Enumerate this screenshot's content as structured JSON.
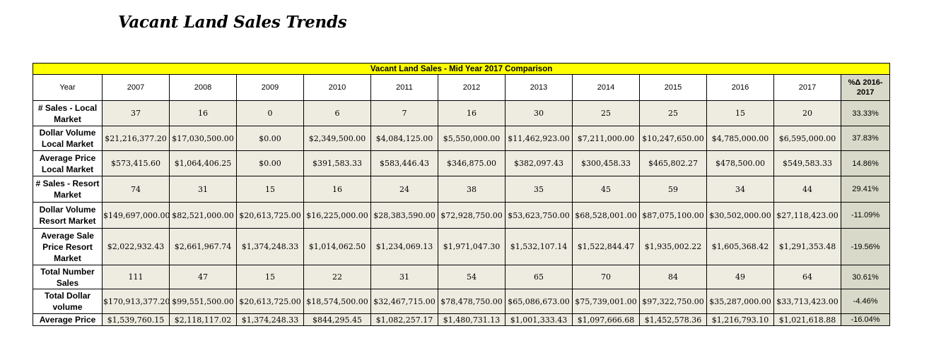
{
  "page": {
    "title": "Vacant Land Sales Trends"
  },
  "table": {
    "banner": "Vacant Land Sales - Mid Year 2017 Comparison",
    "year_label": "Year",
    "years": [
      "2007",
      "2008",
      "2009",
      "2010",
      "2011",
      "2012",
      "2013",
      "2014",
      "2015",
      "2016",
      "2017"
    ],
    "pct_header": "%Δ 2016-2017",
    "rows": [
      {
        "label": "# Sales - Local Market",
        "values": [
          "37",
          "16",
          "0",
          "6",
          "7",
          "16",
          "30",
          "25",
          "25",
          "15",
          "20"
        ],
        "pct": "33.33%"
      },
      {
        "label": "Dollar Volume Local Market",
        "values": [
          "$21,216,377.20",
          "$17,030,500.00",
          "$0.00",
          "$2,349,500.00",
          "$4,084,125.00",
          "$5,550,000.00",
          "$11,462,923.00",
          "$7,211,000.00",
          "$10,247,650.00",
          "$4,785,000.00",
          "$6,595,000.00"
        ],
        "pct": "37.83%"
      },
      {
        "label": "Average Price Local Market",
        "values": [
          "$573,415.60",
          "$1,064,406.25",
          "$0.00",
          "$391,583.33",
          "$583,446.43",
          "$346,875.00",
          "$382,097.43",
          "$300,458.33",
          "$465,802.27",
          "$478,500.00",
          "$549,583.33"
        ],
        "pct": "14.86%"
      },
      {
        "label": "# Sales - Resort Market",
        "values": [
          "74",
          "31",
          "15",
          "16",
          "24",
          "38",
          "35",
          "45",
          "59",
          "34",
          "44"
        ],
        "pct": "29.41%"
      },
      {
        "label": "Dollar Volume Resort Market",
        "values": [
          "$149,697,000.00",
          "$82,521,000.00",
          "$20,613,725.00",
          "$16,225,000.00",
          "$28,383,590.00",
          "$72,928,750.00",
          "$53,623,750.00",
          "$68,528,001.00",
          "$87,075,100.00",
          "$30,502,000.00",
          "$27,118,423.00"
        ],
        "pct": "-11.09%"
      },
      {
        "label": "Average Sale Price Resort Market",
        "values": [
          "$2,022,932.43",
          "$2,661,967.74",
          "$1,374,248.33",
          "$1,014,062.50",
          "$1,234,069.13",
          "$1,971,047.30",
          "$1,532,107.14",
          "$1,522,844.47",
          "$1,935,002.22",
          "$1,605,368.42",
          "$1,291,353.48"
        ],
        "pct": "-19.56%"
      },
      {
        "label": "Total Number Sales",
        "values": [
          "111",
          "47",
          "15",
          "22",
          "31",
          "54",
          "65",
          "70",
          "84",
          "49",
          "64"
        ],
        "pct": "30.61%"
      },
      {
        "label": "Total Dollar volume",
        "values": [
          "$170,913,377.20",
          "$99,551,500.00",
          "$20,613,725.00",
          "$18,574,500.00",
          "$32,467,715.00",
          "$78,478,750.00",
          "$65,086,673.00",
          "$75,739,001.00",
          "$97,322,750.00",
          "$35,287,000.00",
          "$33,713,423.00"
        ],
        "pct": "-4.46%"
      },
      {
        "label": "Average Price",
        "values": [
          "$1,539,760.15",
          "$2,118,117.02",
          "$1,374,248.33",
          "$844,295.45",
          "$1,082,257.17",
          "$1,480,731.13",
          "$1,001,333.43",
          "$1,097,666.68",
          "$1,452,578.36",
          "$1,216,793.10",
          "$1,021,618.88"
        ],
        "pct": "-16.04%"
      }
    ]
  },
  "colors": {
    "banner": "#ffff00",
    "cell": "#eeece1",
    "pct_column": "#d9d9c9"
  }
}
